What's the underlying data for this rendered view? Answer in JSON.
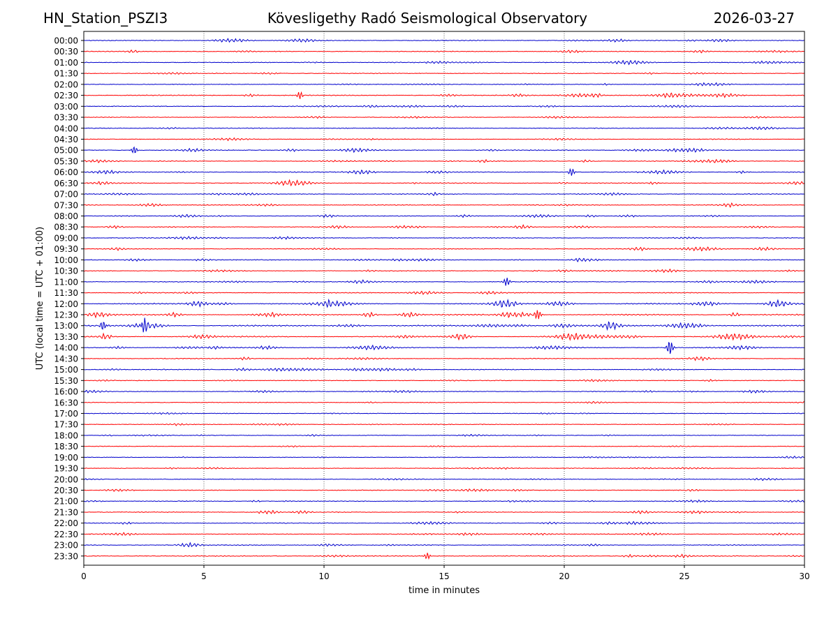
{
  "header": {
    "left": "HN_Station_PSZI3",
    "center": "Kövesligethy Radó Seismological Observatory",
    "right": "2026-03-27"
  },
  "chart_data": {
    "type": "line",
    "title": "Kövesligethy Radó Seismological Observatory",
    "xlabel": "time in minutes",
    "ylabel": "UTC (local time = UTC + 01:00)",
    "xlim": [
      0,
      30
    ],
    "xticks": [
      "0",
      "5",
      "10",
      "15",
      "20",
      "25",
      "30"
    ],
    "vertical_gridlines_at": [
      5,
      10,
      15,
      20,
      25
    ],
    "row_labels": [
      "00:00",
      "00:30",
      "01:00",
      "01:30",
      "02:00",
      "02:30",
      "03:00",
      "03:30",
      "04:00",
      "04:30",
      "05:00",
      "05:30",
      "06:00",
      "06:30",
      "07:00",
      "07:30",
      "08:00",
      "08:30",
      "09:00",
      "09:30",
      "10:00",
      "10:30",
      "11:00",
      "11:30",
      "12:00",
      "12:30",
      "13:00",
      "13:30",
      "14:00",
      "14:30",
      "15:00",
      "15:30",
      "16:00",
      "16:30",
      "17:00",
      "17:30",
      "18:00",
      "18:30",
      "19:00",
      "19:30",
      "20:00",
      "20:30",
      "21:00",
      "21:30",
      "22:00",
      "22:30",
      "23:00",
      "23:30"
    ],
    "row_colors": [
      "#0000cc",
      "#ff0000"
    ],
    "row_activity": [
      0.45,
      0.5,
      0.4,
      0.35,
      0.3,
      0.55,
      0.4,
      0.35,
      0.4,
      0.5,
      0.6,
      0.45,
      0.45,
      0.5,
      0.5,
      0.55,
      0.45,
      0.5,
      0.45,
      0.45,
      0.4,
      0.35,
      0.55,
      0.5,
      0.85,
      0.9,
      1.0,
      0.9,
      0.7,
      0.55,
      0.45,
      0.35,
      0.4,
      0.35,
      0.25,
      0.2,
      0.25,
      0.2,
      0.2,
      0.25,
      0.3,
      0.35,
      0.4,
      0.45,
      0.45,
      0.4,
      0.5,
      0.5
    ],
    "notable_events": [
      {
        "row": "02:30",
        "minute": 9.0,
        "amplitude": 0.6
      },
      {
        "row": "05:00",
        "minute": 2.1,
        "amplitude": 0.6
      },
      {
        "row": "06:00",
        "minute": 20.3,
        "amplitude": 0.6
      },
      {
        "row": "11:00",
        "minute": 17.6,
        "amplitude": 0.7
      },
      {
        "row": "12:00",
        "minute": 10.2,
        "amplitude": 0.5
      },
      {
        "row": "12:30",
        "minute": 18.9,
        "amplitude": 0.8
      },
      {
        "row": "13:00",
        "minute": 2.5,
        "amplitude": 1.4
      },
      {
        "row": "13:00",
        "minute": 0.8,
        "amplitude": 0.7
      },
      {
        "row": "14:00",
        "minute": 24.4,
        "amplitude": 1.2
      },
      {
        "row": "23:30",
        "minute": 14.3,
        "amplitude": 0.5
      }
    ],
    "grid": "vertical-dotted"
  }
}
